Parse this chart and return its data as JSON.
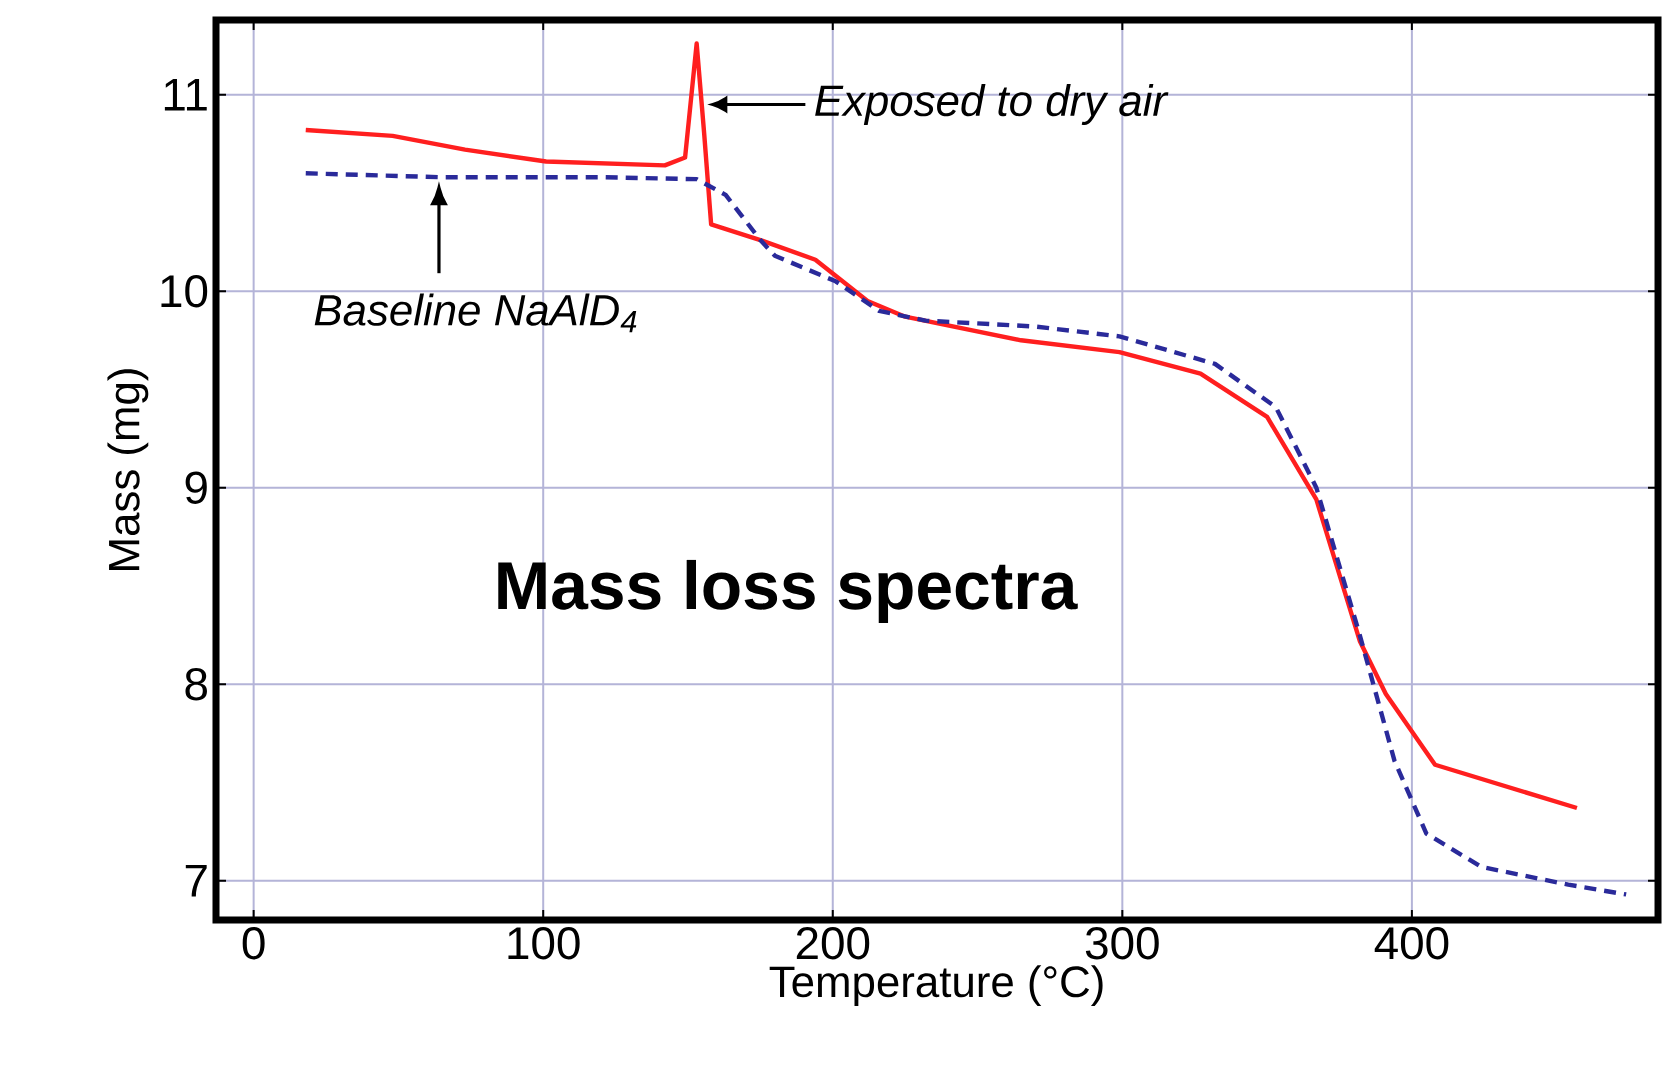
{
  "chart_data": {
    "type": "line",
    "xlabel": "Temperature (°C)",
    "ylabel": "Mass (mg)",
    "xlim": [
      -13,
      485
    ],
    "ylim": [
      6.8,
      11.38
    ],
    "xticks": [
      0,
      100,
      200,
      300,
      400
    ],
    "yticks": [
      7,
      8,
      9,
      10,
      11
    ],
    "grid": true,
    "series": [
      {
        "color": "#ff1f1f",
        "line_style": "solid",
        "x": [
          18,
          48,
          73,
          101,
          142,
          149,
          153,
          155.6,
          158,
          175,
          194,
          212,
          225,
          265,
          299,
          327,
          350,
          367,
          382,
          391,
          408,
          457
        ],
        "values": [
          10.82,
          10.79,
          10.72,
          10.66,
          10.64,
          10.68,
          11.26,
          10.8,
          10.34,
          10.26,
          10.16,
          9.95,
          9.87,
          9.75,
          9.69,
          9.58,
          9.36,
          8.94,
          8.22,
          7.95,
          7.59,
          7.37
        ]
      },
      {
        "color": "#2a2a9a",
        "line_style": "dashed",
        "x": [
          18,
          64,
          120,
          153,
          163,
          175,
          180,
          201,
          216,
          232,
          270,
          299,
          332,
          353,
          367,
          382,
          394,
          405,
          424,
          454,
          474
        ],
        "values": [
          10.6,
          10.58,
          10.58,
          10.57,
          10.49,
          10.26,
          10.18,
          10.05,
          9.9,
          9.85,
          9.82,
          9.77,
          9.63,
          9.41,
          9.0,
          8.25,
          7.61,
          7.24,
          7.07,
          6.98,
          6.93
        ]
      }
    ],
    "annotations": [
      {
        "text": "Exposed to dry air",
        "x": 156,
        "y": 10.95
      },
      {
        "text": "Baseline NaAlD$_{4}$",
        "x": 64,
        "y": 10.58
      },
      "Mass loss spectra"
    ]
  }
}
